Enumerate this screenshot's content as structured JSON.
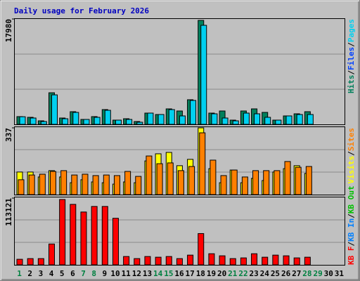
{
  "chart_data": [
    {
      "type": "bar",
      "title": "Daily usage for February 2026",
      "ylim": [
        0,
        17980
      ],
      "yticks": [
        17980
      ],
      "series": [
        {
          "name": "Hits",
          "color": "#00805c",
          "values": [
            1320,
            1200,
            600,
            5390,
            1080,
            2160,
            840,
            1320,
            2520,
            720,
            960,
            480,
            1920,
            1680,
            2640,
            2280,
            4200,
            17740,
            1920,
            2280,
            720,
            2280,
            2640,
            2040,
            720,
            1440,
            1800,
            2160,
            null,
            null,
            null
          ]
        },
        {
          "name": "Files",
          "color": "#0040ff",
          "values": [
            null,
            null,
            null,
            null,
            null,
            null,
            null,
            null,
            null,
            null,
            null,
            null,
            null,
            null,
            null,
            null,
            null,
            null,
            null,
            null,
            null,
            null,
            null,
            null,
            null,
            null,
            null,
            null,
            null,
            null,
            null
          ]
        },
        {
          "name": "Pages",
          "color": "#00d0f0",
          "values": [
            1300,
            1080,
            480,
            5030,
            960,
            2040,
            840,
            1200,
            2400,
            720,
            840,
            360,
            1920,
            1680,
            2520,
            1440,
            4080,
            16900,
            1800,
            1080,
            600,
            1920,
            1800,
            1200,
            720,
            1440,
            1680,
            1680,
            null,
            null,
            null
          ]
        }
      ]
    },
    {
      "type": "bar",
      "ylim": [
        0,
        337
      ],
      "yticks": [
        337
      ],
      "series": [
        {
          "name": "Visits",
          "color": "#ffff00",
          "values": [
            114,
            114,
            89,
            121,
            89,
            60,
            75,
            64,
            60,
            53,
            64,
            60,
            170,
            206,
            213,
            146,
            178,
            337,
            131,
            60,
            124,
            60,
            82,
            71,
            114,
            131,
            146,
            107,
            null,
            null,
            null
          ]
        },
        {
          "name": "Sites",
          "color": "#ff8000",
          "values": [
            75,
            99,
            103,
            117,
            121,
            99,
            103,
            96,
            99,
            96,
            117,
            92,
            195,
            156,
            160,
            121,
            142,
            312,
            174,
            96,
            124,
            89,
            121,
            121,
            121,
            167,
            138,
            142,
            null,
            null,
            null
          ]
        }
      ]
    },
    {
      "type": "bar",
      "ylim": [
        0,
        113121
      ],
      "yticks": [
        113121
      ],
      "categories": [
        "1",
        "2",
        "3",
        "4",
        "5",
        "6",
        "7",
        "8",
        "9",
        "10",
        "11",
        "12",
        "13",
        "14",
        "15",
        "16",
        "17",
        "18",
        "19",
        "20",
        "21",
        "22",
        "23",
        "24",
        "25",
        "26",
        "27",
        "28",
        "29",
        "30",
        "31"
      ],
      "category_colors": [
        "#008040",
        "#000000",
        "#000000",
        "#000000",
        "#000000",
        "#000000",
        "#008040",
        "#008040",
        "#000000",
        "#000000",
        "#000000",
        "#000000",
        "#000000",
        "#008040",
        "#008040",
        "#000000",
        "#000000",
        "#000000",
        "#000000",
        "#000000",
        "#008040",
        "#008040",
        "#000000",
        "#000000",
        "#000000",
        "#000000",
        "#000000",
        "#008040",
        "#008040",
        "#000000",
        "#000000"
      ],
      "series": [
        {
          "name": "KB F",
          "color": "#ff0000",
          "values": [
            9430,
            10600,
            10600,
            35350,
            110770,
            102520,
            89560,
            98990,
            98990,
            78950,
            14140,
            10600,
            14140,
            12960,
            14140,
            10600,
            16500,
            53030,
            18850,
            15320,
            10600,
            11780,
            18850,
            12960,
            16500,
            15320,
            11780,
            12960,
            null,
            null,
            null
          ]
        },
        {
          "name": "KB In",
          "color": "#0080ff",
          "values": [
            null,
            null,
            null,
            null,
            null,
            null,
            null,
            null,
            null,
            null,
            null,
            null,
            null,
            null,
            null,
            null,
            null,
            null,
            null,
            null,
            null,
            null,
            null,
            null,
            null,
            null,
            null,
            null,
            null,
            null,
            null
          ]
        },
        {
          "name": "KB Out",
          "color": "#00c000",
          "values": [
            null,
            null,
            null,
            null,
            null,
            null,
            null,
            null,
            null,
            null,
            null,
            null,
            null,
            null,
            null,
            null,
            null,
            null,
            null,
            null,
            null,
            null,
            null,
            null,
            null,
            null,
            null,
            null,
            null,
            null,
            null
          ]
        }
      ]
    }
  ]
}
